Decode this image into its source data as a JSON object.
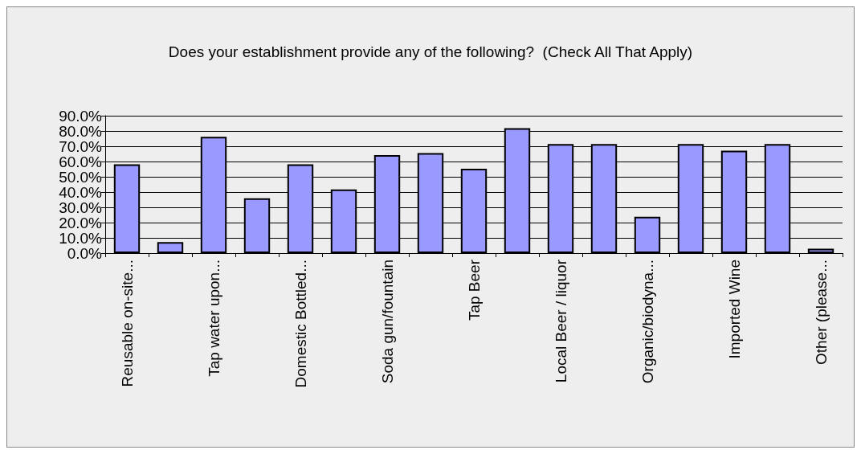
{
  "chart_data": {
    "type": "bar",
    "title": "Does your establishment provide any of the following?  (Check All That Apply)",
    "categories": [
      "Reusable on-site...",
      null,
      "Tap water upon...",
      null,
      "Domestic Bottled...",
      null,
      "Soda gun/fountain",
      null,
      "Tap Beer",
      null,
      "Local Beer / liquor",
      null,
      "Organic/biodyna...",
      null,
      "Imported Wine",
      null,
      "Other (please..."
    ],
    "values": [
      58.2,
      7.3,
      76.2,
      35.9,
      58.2,
      41.7,
      64.2,
      65.5,
      55.2,
      81.9,
      71.4,
      71.4,
      23.8,
      71.4,
      67.1,
      71.4,
      2.9
    ],
    "color": "#9999ff",
    "ylim": [
      0,
      90
    ],
    "yticks": [
      {
        "value": 0,
        "label": "0.0%"
      },
      {
        "value": 10,
        "label": "10.0%"
      },
      {
        "value": 20,
        "label": "20.0%"
      },
      {
        "value": 30,
        "label": "30.0%"
      },
      {
        "value": 40,
        "label": "40.0%"
      },
      {
        "value": 50,
        "label": "50.0%"
      },
      {
        "value": 60,
        "label": "60.0%"
      },
      {
        "value": 70,
        "label": "70.0%"
      },
      {
        "value": 80,
        "label": "80.0%"
      },
      {
        "value": 90,
        "label": "90.0%"
      }
    ],
    "grid": "y"
  }
}
